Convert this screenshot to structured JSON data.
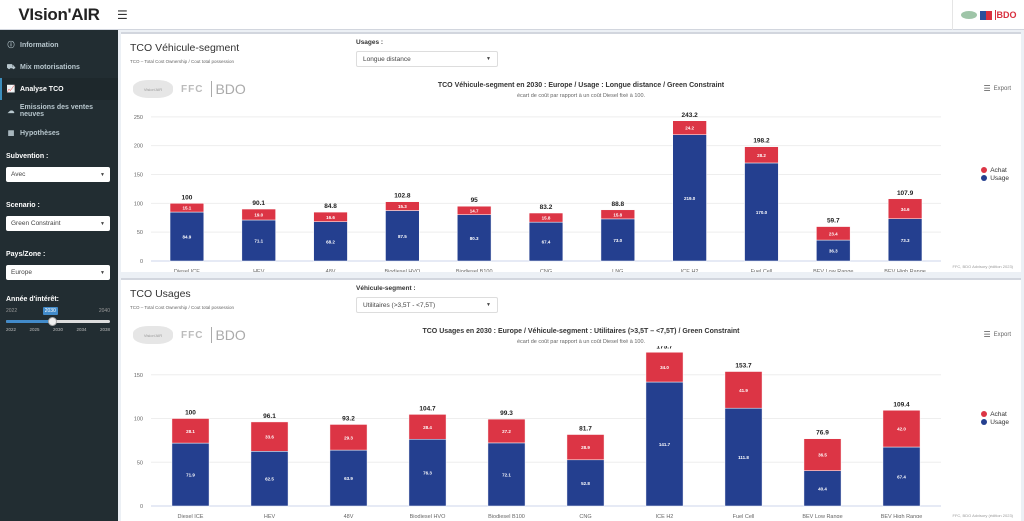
{
  "app": {
    "title": "VIsion'AIR",
    "menu_icon": "hamburger-icon",
    "partner_logos": [
      "Vision'AIR",
      "FFC",
      "BDO"
    ]
  },
  "sidebar": {
    "items": [
      {
        "label": "Information",
        "icon": "info-icon",
        "active": false
      },
      {
        "label": "Mix motorisations",
        "icon": "truck-icon",
        "active": false
      },
      {
        "label": "Analyse TCO",
        "icon": "chart-icon",
        "active": true
      },
      {
        "label": "Emissions des ventes neuves",
        "icon": "cloud-icon",
        "active": false
      },
      {
        "label": "Hypothèses",
        "icon": "table-icon",
        "active": false
      }
    ],
    "subvention": {
      "label": "Subvention :",
      "value": "Avec"
    },
    "scenario": {
      "label": "Scenario :",
      "value": "Green Constraint"
    },
    "zone": {
      "label": "Pays/Zone :",
      "value": "Europe"
    },
    "year": {
      "label": "Année d'intérêt:",
      "min": "2022",
      "max": "2040",
      "value": "2030",
      "ticks": [
        "2022",
        "2025",
        "2030",
        "2034",
        "2038"
      ],
      "fraction": 0.44
    }
  },
  "panels": [
    {
      "title": "TCO Véhicule-segment",
      "subtitle": "TCO – Total Cost Ownership / Cout total possession",
      "control_label": "Usages :",
      "control_value": "Longue distance",
      "export_label": "Export",
      "credit": "FFC, BDO Advisory (édition 2023)"
    },
    {
      "title": "TCO Usages",
      "subtitle": "TCO – Total Cost Ownership / Cout total possession",
      "control_label": "Véhicule-segment :",
      "control_value": "Utilitaires (>3,5T - <7,5T)",
      "export_label": "Export",
      "credit": "FFC, BDO Advisory (édition 2023)"
    }
  ],
  "colors": {
    "achat": "#dc3545",
    "usage": "#243f8f"
  },
  "chart_data": [
    {
      "type": "bar",
      "stacked": true,
      "title": "TCO Véhicule-segment en 2030 : Europe / Usage : Longue distance / Green Constraint",
      "subtitle": "écart de coût par rapport à un coût Diesel fixé à 100.",
      "categories": [
        "Diesel ICE",
        "HEV",
        "48V",
        "Biodiesel HVO",
        "Biodiesel B100",
        "CNG",
        "LNG",
        "ICE H2",
        "Fuel Cell",
        "BEV Low Range",
        "BEV High Range"
      ],
      "series": [
        {
          "name": "Achat",
          "values": [
            15.1,
            19.0,
            16.6,
            15.3,
            14.7,
            15.8,
            15.8,
            24.2,
            28.2,
            23.4,
            34.6
          ]
        },
        {
          "name": "Usage",
          "values": [
            84.9,
            71.1,
            68.2,
            87.5,
            80.3,
            67.4,
            73.0,
            219.0,
            170.0,
            36.3,
            73.3
          ]
        }
      ],
      "totals": [
        "100",
        "90.1",
        "84.8",
        "102.8",
        "95",
        "83.2",
        "88.8",
        "243.2",
        "198.2",
        "59.7",
        "107.9"
      ],
      "yticks": [
        0,
        50,
        100,
        150,
        200,
        250,
        300
      ],
      "ylim": [
        0,
        300
      ],
      "legend": [
        "Achat",
        "Usage"
      ],
      "legend_position": "right",
      "grid": true
    },
    {
      "type": "bar",
      "stacked": true,
      "title": "TCO Usages en 2030 : Europe / Véhicule-segment : Utilitaires (>3,5T – <7,5T) / Green Constraint",
      "subtitle": "écart de coût par rapport à un coût Diesel fixé à 100.",
      "categories": [
        "Diesel ICE",
        "HEV",
        "48V",
        "Biodiesel HVO",
        "Biodiesel B100",
        "CNG",
        "ICE H2",
        "Fuel Cell",
        "BEV Low Range",
        "BEV High Range"
      ],
      "series": [
        {
          "name": "Achat",
          "values": [
            28.1,
            33.6,
            29.3,
            28.4,
            27.2,
            28.9,
            34.0,
            41.9,
            36.5,
            42.0
          ]
        },
        {
          "name": "Usage",
          "values": [
            71.9,
            62.5,
            63.9,
            76.3,
            72.1,
            52.8,
            141.7,
            111.8,
            40.4,
            67.4
          ]
        }
      ],
      "totals": [
        "100",
        "96.1",
        "93.2",
        "104.7",
        "99.3",
        "81.7",
        "175.7",
        "153.7",
        "76.9",
        "109.4"
      ],
      "yticks": [
        0,
        50,
        100,
        150,
        200
      ],
      "ylim": [
        0,
        200
      ],
      "legend": [
        "Achat",
        "Usage"
      ],
      "legend_position": "right",
      "grid": true
    }
  ]
}
